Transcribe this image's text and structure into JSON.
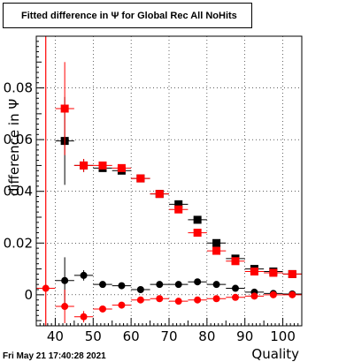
{
  "title": "Fitted difference in  Ψ  for Global Rec All NoHits",
  "datestamp": "Fri May 21 17:40:28 2021",
  "colors": {
    "series_red": "#ff0000",
    "series_black": "#000000",
    "vline": "#ff0000",
    "background": "#ffffff"
  },
  "chart_data": {
    "type": "scatter",
    "xlabel": "Quality",
    "ylabel": "difference in  Ψ",
    "xlim": [
      35,
      105
    ],
    "ylim": [
      -0.012,
      0.1
    ],
    "xticks": [
      40,
      50,
      60,
      70,
      80,
      90,
      100
    ],
    "xtick_labels": [
      "40",
      "50",
      "60",
      "70",
      "80",
      "90",
      "100"
    ],
    "yticks": [
      0,
      0.02,
      0.04,
      0.06,
      0.08
    ],
    "ytick_labels": [
      "0",
      "0.02",
      "0.04",
      "0.06",
      "0.08"
    ],
    "grid": true,
    "vertical_line_x": 37.5,
    "series": [
      {
        "color": "#000000",
        "marker": "square",
        "points": [
          {
            "x": 42.5,
            "y": 0.0595,
            "err": 0.017
          },
          {
            "x": 47.5,
            "y": 0.05,
            "err": 0.0025
          },
          {
            "x": 52.5,
            "y": 0.049,
            "err": 0.001
          },
          {
            "x": 57.5,
            "y": 0.048,
            "err": 0.001
          },
          {
            "x": 62.5,
            "y": 0.045,
            "err": 0.001
          },
          {
            "x": 67.5,
            "y": 0.039,
            "err": 0.001
          },
          {
            "x": 72.5,
            "y": 0.035,
            "err": 0.001
          },
          {
            "x": 77.5,
            "y": 0.029,
            "err": 0.001
          },
          {
            "x": 82.5,
            "y": 0.02,
            "err": 0.001
          },
          {
            "x": 87.5,
            "y": 0.014,
            "err": 0.001
          },
          {
            "x": 92.5,
            "y": 0.01,
            "err": 0.001
          },
          {
            "x": 97.5,
            "y": 0.009,
            "err": 0.001
          },
          {
            "x": 102.5,
            "y": 0.008,
            "err": 0.001
          }
        ]
      },
      {
        "color": "#ff0000",
        "marker": "square",
        "points": [
          {
            "x": 42.5,
            "y": 0.072,
            "err": 0.018
          },
          {
            "x": 47.5,
            "y": 0.05,
            "err": 0.0025
          },
          {
            "x": 52.5,
            "y": 0.05,
            "err": 0.001
          },
          {
            "x": 57.5,
            "y": 0.049,
            "err": 0.001
          },
          {
            "x": 62.5,
            "y": 0.045,
            "err": 0.001
          },
          {
            "x": 67.5,
            "y": 0.039,
            "err": 0.001
          },
          {
            "x": 72.5,
            "y": 0.033,
            "err": 0.001
          },
          {
            "x": 77.5,
            "y": 0.024,
            "err": 0.001
          },
          {
            "x": 82.5,
            "y": 0.017,
            "err": 0.001
          },
          {
            "x": 87.5,
            "y": 0.013,
            "err": 0.001
          },
          {
            "x": 92.5,
            "y": 0.009,
            "err": 0.001
          },
          {
            "x": 97.5,
            "y": 0.0085,
            "err": 0.001
          },
          {
            "x": 102.5,
            "y": 0.008,
            "err": 0.001
          }
        ]
      },
      {
        "color": "#000000",
        "marker": "circle",
        "points": [
          {
            "x": 42.5,
            "y": 0.0055,
            "err": 0.009
          },
          {
            "x": 47.5,
            "y": 0.0075,
            "err": 0.002
          },
          {
            "x": 52.5,
            "y": 0.004,
            "err": 0.0008
          },
          {
            "x": 57.5,
            "y": 0.0035,
            "err": 0.0006
          },
          {
            "x": 62.5,
            "y": 0.002,
            "err": 0.0006
          },
          {
            "x": 67.5,
            "y": 0.004,
            "err": 0.0005
          },
          {
            "x": 72.5,
            "y": 0.004,
            "err": 0.0005
          },
          {
            "x": 77.5,
            "y": 0.005,
            "err": 0.0005
          },
          {
            "x": 82.5,
            "y": 0.004,
            "err": 0.0005
          },
          {
            "x": 87.5,
            "y": 0.0025,
            "err": 0.0005
          },
          {
            "x": 92.5,
            "y": 0.001,
            "err": 0.0005
          },
          {
            "x": 97.5,
            "y": 0.0005,
            "err": 0.0005
          },
          {
            "x": 102.5,
            "y": 0.0003,
            "err": 0.0005
          }
        ]
      },
      {
        "color": "#ff0000",
        "marker": "circle",
        "points": [
          {
            "x": 37.5,
            "y": 0.0025,
            "err": 0.0
          },
          {
            "x": 42.5,
            "y": -0.0045,
            "err": 0.0065
          },
          {
            "x": 47.5,
            "y": -0.0085,
            "err": 0.0022
          },
          {
            "x": 52.5,
            "y": -0.0055,
            "err": 0.001
          },
          {
            "x": 57.5,
            "y": -0.004,
            "err": 0.0008
          },
          {
            "x": 62.5,
            "y": -0.002,
            "err": 0.0006
          },
          {
            "x": 67.5,
            "y": -0.0015,
            "err": 0.0005
          },
          {
            "x": 72.5,
            "y": -0.0025,
            "err": 0.0005
          },
          {
            "x": 77.5,
            "y": -0.002,
            "err": 0.0005
          },
          {
            "x": 82.5,
            "y": -0.0015,
            "err": 0.0005
          },
          {
            "x": 87.5,
            "y": -0.001,
            "err": 0.0005
          },
          {
            "x": 92.5,
            "y": -0.0005,
            "err": 0.0005
          },
          {
            "x": 97.5,
            "y": 0.0,
            "err": 0.0005
          },
          {
            "x": 102.5,
            "y": 0.0,
            "err": 0.0005
          }
        ]
      }
    ]
  }
}
